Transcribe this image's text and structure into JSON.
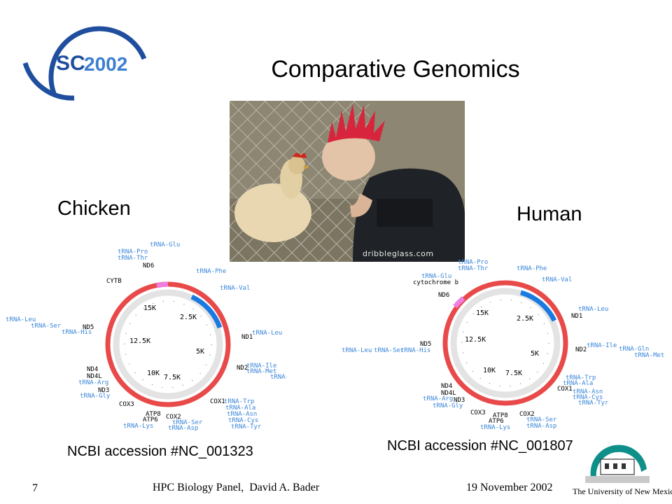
{
  "title": "Comparative Genomics",
  "logo": {
    "text_sc": "SC",
    "text_year": "2002"
  },
  "photo": {
    "watermark": "dribbleglass.com"
  },
  "left": {
    "label": "Chicken",
    "accession": "NCBI accession #NC_001323"
  },
  "right": {
    "label": "Human",
    "accession": "NCBI accession #NC_001807"
  },
  "chicken_map": {
    "scale": [
      "15K",
      "2.5K",
      "12.5K",
      "5K",
      "10K",
      "7.5K"
    ],
    "genes": [
      "CYTB",
      "ND6",
      "ND5",
      "ND1",
      "ND2",
      "ND4",
      "ND4L",
      "ND3",
      "COX3",
      "ATP8",
      "ATP6",
      "COX2",
      "COX1"
    ],
    "trnas": [
      "tRNA-Glu",
      "tRNA-Pro",
      "tRNA-Thr",
      "tRNA-Phe",
      "tRNA-Val",
      "tRNA-Leu",
      "tRNA-Ser",
      "tRNA-His",
      "tRNA-Leu",
      "tRNA-Ile",
      "tRNA-Met",
      "tRNA-Gln",
      "tRNA-Arg",
      "tRNA-Gly",
      "tRNA-Trp",
      "tRNA-Ala",
      "tRNA-Asn",
      "tRNA-Cys",
      "tRNA-Tyr",
      "tRNA-Lys",
      "tRNA-Ser",
      "tRNA-Asp"
    ]
  },
  "human_map": {
    "scale": [
      "15K",
      "2.5K",
      "12.5K",
      "5K",
      "10K",
      "7.5K"
    ],
    "genes": [
      "cytochrome b",
      "ND6",
      "ND5",
      "ND1",
      "ND2",
      "COX1",
      "ND4",
      "ND4L",
      "ND3",
      "COX3",
      "ATP8",
      "ATP6",
      "COX2"
    ],
    "trnas": [
      "tRNA-Pro",
      "tRNA-Thr",
      "tRNA-Phe",
      "tRNA-Glu",
      "tRNA-Val",
      "tRNA-Leu",
      "tRNA-Ile",
      "tRNA-Gln",
      "tRNA-Met",
      "tRNA-Leu",
      "tRNA-Ser",
      "tRNA-His",
      "tRNA-Trp",
      "tRNA-Ala",
      "tRNA-Asn",
      "tRNA-Cys",
      "tRNA-Tyr",
      "tRNA-Arg",
      "tRNA-Gly",
      "tRNA-Ser",
      "tRNA-Asp",
      "tRNA-Lys"
    ]
  },
  "footer": {
    "page_number": "7",
    "center": "HPC Biology Panel,  David A. Bader",
    "date": "19 November 2002",
    "university": "The University of New Mexico"
  },
  "colors": {
    "red": "#e84a4a",
    "blue": "#1a7ae0",
    "pink": "#ee7ee0",
    "ring": "#e3e3e3",
    "label_blue": "#3a86d8",
    "logo_blue": "#1f4e9e"
  }
}
